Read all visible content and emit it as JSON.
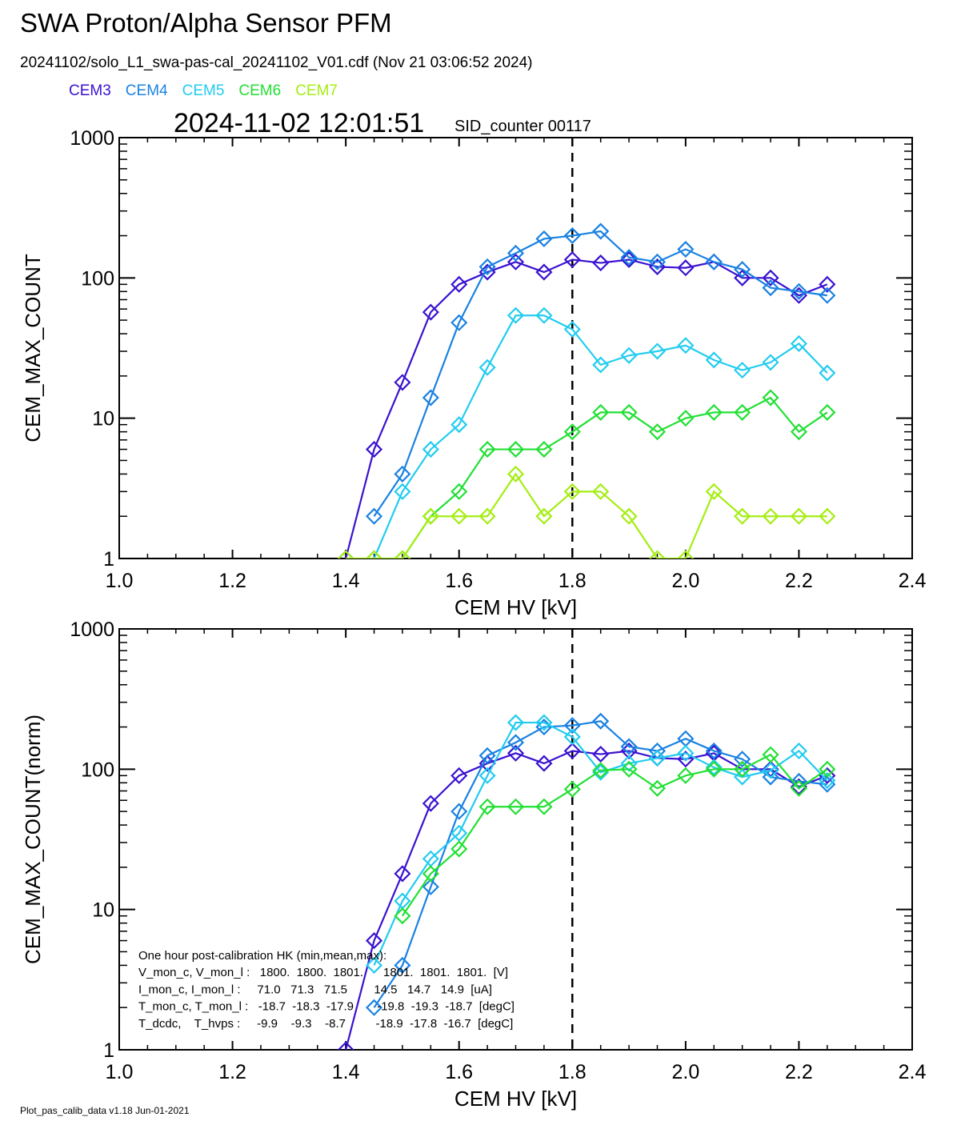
{
  "header": {
    "title": "SWA Proton/Alpha Sensor PFM",
    "subtitle": "20241102/solo_L1_swa-pas-cal_20241102_V01.cdf  (Nov 21 03:06:52 2024)",
    "timestamp": "2024-11-02 12:01:51",
    "counter": "SID_counter 00117"
  },
  "chart_data": [
    {
      "type": "line",
      "xlabel": "CEM HV [kV]",
      "ylabel": "CEM_MAX_COUNT",
      "log_y": true,
      "vline": 1.8,
      "x": [
        1.4,
        1.45,
        1.5,
        1.55,
        1.6,
        1.65,
        1.7,
        1.75,
        1.8,
        1.85,
        1.9,
        1.95,
        2.0,
        2.05,
        2.1,
        2.15,
        2.2,
        2.25
      ],
      "xlim": [
        1.0,
        2.4
      ],
      "xticks": [
        {
          "value": 1,
          "label": "1.0"
        },
        {
          "value": 1.2,
          "label": "1.2"
        },
        {
          "value": 1.4,
          "label": "1.4"
        },
        {
          "value": 1.6,
          "label": "1.6"
        },
        {
          "value": 1.8,
          "label": "1.8"
        },
        {
          "value": 2,
          "label": "2.0"
        },
        {
          "value": 2.2,
          "label": "2.2"
        },
        {
          "value": 2.4,
          "label": "2.4"
        }
      ],
      "ylim": [
        1,
        1000
      ],
      "yticks": [
        1,
        10,
        100,
        1000
      ],
      "series": [
        {
          "name": "CEM3",
          "color": "#3a12d0",
          "values": [
            1,
            6,
            18,
            57,
            90,
            110,
            130,
            110,
            135,
            128,
            135,
            120,
            118,
            130,
            100,
            100,
            75,
            90
          ]
        },
        {
          "name": "CEM4",
          "color": "#1a82e2",
          "values": [
            null,
            2,
            4,
            14,
            48,
            120,
            150,
            190,
            200,
            215,
            140,
            130,
            160,
            130,
            115,
            85,
            80,
            75
          ]
        },
        {
          "name": "CEM5",
          "color": "#22ccf0",
          "values": [
            null,
            1,
            3,
            6,
            9,
            23,
            54,
            54,
            43,
            24,
            28,
            30,
            33,
            26,
            22,
            25,
            34,
            21
          ]
        },
        {
          "name": "CEM6",
          "color": "#22e034",
          "values": [
            null,
            null,
            1,
            2,
            3,
            6,
            6,
            6,
            8,
            11,
            11,
            8,
            10,
            11,
            11,
            14,
            8,
            11
          ]
        },
        {
          "name": "CEM7",
          "color": "#a4ee12",
          "values": [
            1,
            1,
            1,
            2,
            2,
            2,
            4,
            2,
            3,
            3,
            2,
            1,
            1,
            3,
            2,
            2,
            2,
            2
          ]
        }
      ]
    },
    {
      "type": "line",
      "xlabel": "CEM HV [kV]",
      "ylabel": "CEM_MAX_COUNT(norm)",
      "log_y": true,
      "vline": 1.8,
      "x": [
        1.4,
        1.45,
        1.5,
        1.55,
        1.6,
        1.65,
        1.7,
        1.75,
        1.8,
        1.85,
        1.9,
        1.95,
        2.0,
        2.05,
        2.1,
        2.15,
        2.2,
        2.25
      ],
      "xlim": [
        1.0,
        2.4
      ],
      "xticks": [
        {
          "value": 1,
          "label": "1.0"
        },
        {
          "value": 1.2,
          "label": "1.2"
        },
        {
          "value": 1.4,
          "label": "1.4"
        },
        {
          "value": 1.6,
          "label": "1.6"
        },
        {
          "value": 1.8,
          "label": "1.8"
        },
        {
          "value": 2,
          "label": "2.0"
        },
        {
          "value": 2.2,
          "label": "2.2"
        },
        {
          "value": 2.4,
          "label": "2.4"
        }
      ],
      "ylim": [
        1,
        1000
      ],
      "yticks": [
        1,
        10,
        100,
        1000
      ],
      "series": [
        {
          "name": "CEM3",
          "color": "#3a12d0",
          "values": [
            1,
            6,
            18,
            57,
            90,
            110,
            130,
            110,
            135,
            128,
            135,
            120,
            118,
            130,
            100,
            100,
            75,
            90
          ]
        },
        {
          "name": "CEM4",
          "color": "#1a82e2",
          "values": [
            null,
            2,
            4,
            14.5,
            50,
            125,
            155,
            200,
            205,
            220,
            145,
            135,
            165,
            135,
            118,
            88,
            82,
            78
          ]
        },
        {
          "name": "CEM5",
          "color": "#22ccf0",
          "values": [
            null,
            4,
            11.5,
            23,
            35,
            90,
            215,
            215,
            170,
            95,
            110,
            120,
            130,
            103,
            88,
            98,
            135,
            83
          ]
        },
        {
          "name": "CEM6",
          "color": "#22e034",
          "values": [
            null,
            null,
            9,
            18,
            27,
            54,
            54,
            54,
            72,
            98,
            100,
            73,
            90,
            100,
            100,
            127,
            73,
            100
          ]
        }
      ]
    }
  ],
  "hk_notes": [
    "One hour post-calibration HK (min,mean,max):",
    "V_mon_c, V_mon_l :   1800.  1800.  1801.      1801.  1801.  1801.  [V]",
    "I_mon_c, I_mon_l :     71.0   71.3   71.5        14.5   14.7   14.9  [uA]",
    "T_mon_c, T_mon_l :   -18.7  -18.3  -17.9       -19.8  -19.3  -18.7  [degC]",
    "T_dcdc,    T_hvps :     -9.9    -9.3    -8.7         -18.9  -17.8  -16.7  [degC]"
  ],
  "footer": "Plot_pas_calib_data v1.18 Jun-01-2021"
}
